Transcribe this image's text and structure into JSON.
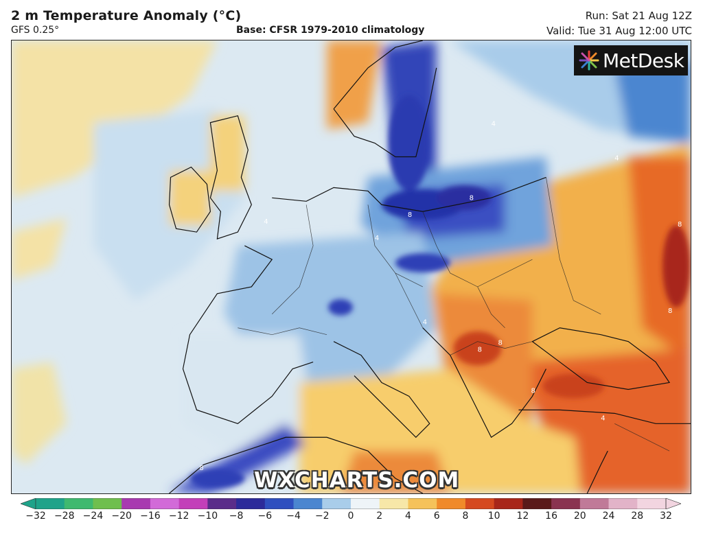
{
  "header": {
    "title": "2 m Temperature Anomaly (°C)",
    "model": "GFS 0.25°",
    "base": "Base: CFSR 1979-2010 climatology",
    "run": "Run: Sat 21 Aug 12Z",
    "valid": "Valid: Tue 31 Aug 12:00 UTC"
  },
  "logo": {
    "text": "MetDesk"
  },
  "watermark": "WXCHARTS.COM",
  "colorbar": {
    "ticks": [
      "−32",
      "−28",
      "−24",
      "−20",
      "−16",
      "−12",
      "−10",
      "−8",
      "−6",
      "−4",
      "−2",
      "0",
      "2",
      "4",
      "6",
      "8",
      "10",
      "12",
      "16",
      "20",
      "24",
      "28",
      "32"
    ],
    "colors": [
      "#1fa38a",
      "#3fb96f",
      "#6fbf4e",
      "#a83ab0",
      "#d26ad8",
      "#c33fb9",
      "#5a2c8a",
      "#2c2a9a",
      "#2f4fbf",
      "#4b86d0",
      "#a9cdea",
      "#eef4f8",
      "#f7e7a8",
      "#f5c25a",
      "#f08a2a",
      "#d5491f",
      "#a8261a",
      "#5a1a1a",
      "#8a3350",
      "#c07a98",
      "#e2b3c8",
      "#f2d5e0"
    ]
  },
  "map": {
    "contour_labels": [
      "4",
      "4",
      "4",
      "4",
      "4",
      "4",
      "8",
      "8",
      "8",
      "8",
      "8",
      "8",
      "8",
      "8"
    ],
    "ocean_color": "#dbe8f1",
    "warm_color": "#f0a04a",
    "cold_color": "#2e3fbf"
  }
}
